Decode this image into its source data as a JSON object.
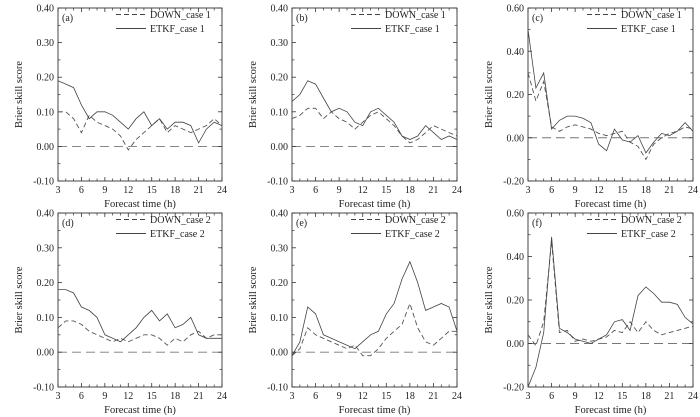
{
  "chart_data": [
    {
      "type": "line",
      "panel_label": "(a)",
      "xlabel": "Forecast time (h)",
      "ylabel": "Brier skill score",
      "xlim": [
        3,
        24
      ],
      "ylim": [
        -0.1,
        0.4
      ],
      "xticks": [
        "3",
        "6",
        "9",
        "12",
        "15",
        "18",
        "21",
        "24"
      ],
      "yticks": [
        "-0.10",
        "0.00",
        "0.10",
        "0.20",
        "0.30",
        "0.40"
      ],
      "legend_position": "top-right",
      "x": [
        3,
        4,
        5,
        6,
        7,
        8,
        9,
        10,
        11,
        12,
        13,
        14,
        15,
        16,
        17,
        18,
        19,
        20,
        21,
        22,
        23,
        24
      ],
      "series": [
        {
          "name": "DOWN_case 1",
          "style": "dashed",
          "values": [
            0.1,
            0.1,
            0.08,
            0.04,
            0.09,
            0.07,
            0.06,
            0.05,
            0.03,
            -0.01,
            0.02,
            0.04,
            0.06,
            0.08,
            0.04,
            0.06,
            0.05,
            0.04,
            0.05,
            0.06,
            0.08,
            0.06
          ]
        },
        {
          "name": "ETKF_case 1",
          "style": "solid",
          "values": [
            0.19,
            0.18,
            0.17,
            0.12,
            0.08,
            0.1,
            0.1,
            0.09,
            0.07,
            0.05,
            0.08,
            0.1,
            0.06,
            0.08,
            0.05,
            0.07,
            0.07,
            0.06,
            0.01,
            0.05,
            0.07,
            0.06
          ]
        }
      ]
    },
    {
      "type": "line",
      "panel_label": "(b)",
      "xlabel": "Forecast time (h)",
      "ylabel": "Brier skill score",
      "xlim": [
        3,
        24
      ],
      "ylim": [
        -0.1,
        0.4
      ],
      "xticks": [
        "3",
        "6",
        "9",
        "12",
        "15",
        "18",
        "21",
        "24"
      ],
      "yticks": [
        "-0.10",
        "0.00",
        "0.10",
        "0.20",
        "0.30",
        "0.40"
      ],
      "legend_position": "top-right",
      "x": [
        3,
        4,
        5,
        6,
        7,
        8,
        9,
        10,
        11,
        12,
        13,
        14,
        15,
        16,
        17,
        18,
        19,
        20,
        21,
        22,
        23,
        24
      ],
      "series": [
        {
          "name": "DOWN_case 1",
          "style": "dashed",
          "values": [
            0.08,
            0.09,
            0.11,
            0.11,
            0.08,
            0.1,
            0.08,
            0.07,
            0.05,
            0.07,
            0.09,
            0.1,
            0.08,
            0.06,
            0.03,
            0.01,
            0.02,
            0.04,
            0.06,
            0.05,
            0.04,
            0.03
          ]
        },
        {
          "name": "ETKF_case 1",
          "style": "solid",
          "values": [
            0.13,
            0.15,
            0.19,
            0.18,
            0.14,
            0.1,
            0.11,
            0.1,
            0.07,
            0.06,
            0.1,
            0.11,
            0.09,
            0.07,
            0.03,
            0.02,
            0.03,
            0.06,
            0.04,
            0.02,
            0.03,
            0.02
          ]
        }
      ]
    },
    {
      "type": "line",
      "panel_label": "(c)",
      "xlabel": "Forecast time (h)",
      "ylabel": "Brier skill score",
      "xlim": [
        3,
        24
      ],
      "ylim": [
        -0.2,
        0.6
      ],
      "xticks": [
        "3",
        "6",
        "9",
        "12",
        "15",
        "18",
        "21",
        "24"
      ],
      "yticks": [
        "-0.20",
        "0.00",
        "0.20",
        "0.40",
        "0.60"
      ],
      "legend_position": "top-right",
      "x": [
        3,
        4,
        5,
        6,
        7,
        8,
        9,
        10,
        11,
        12,
        13,
        14,
        15,
        16,
        17,
        18,
        19,
        20,
        21,
        22,
        23,
        24
      ],
      "series": [
        {
          "name": "DOWN_case 1",
          "style": "dashed",
          "values": [
            0.3,
            0.17,
            0.26,
            0.05,
            0.03,
            0.05,
            0.06,
            0.05,
            0.04,
            0.02,
            0.01,
            0.02,
            0.03,
            -0.02,
            -0.04,
            -0.1,
            -0.03,
            0.0,
            0.02,
            0.03,
            0.05,
            0.04
          ]
        },
        {
          "name": "ETKF_case 1",
          "style": "solid",
          "values": [
            0.5,
            0.23,
            0.3,
            0.04,
            0.08,
            0.1,
            0.1,
            0.09,
            0.07,
            -0.03,
            -0.06,
            0.04,
            -0.01,
            -0.02,
            0.01,
            -0.07,
            -0.02,
            0.02,
            0.01,
            0.03,
            0.07,
            0.03
          ]
        }
      ]
    },
    {
      "type": "line",
      "panel_label": "(d)",
      "xlabel": "Forecast time (h)",
      "ylabel": "Brier skill score",
      "xlim": [
        3,
        24
      ],
      "ylim": [
        -0.1,
        0.4
      ],
      "xticks": [
        "3",
        "6",
        "9",
        "12",
        "15",
        "18",
        "21",
        "24"
      ],
      "yticks": [
        "-0.10",
        "0.00",
        "0.10",
        "0.20",
        "0.30",
        "0.40"
      ],
      "legend_position": "top-right",
      "x": [
        3,
        4,
        5,
        6,
        7,
        8,
        9,
        10,
        11,
        12,
        13,
        14,
        15,
        16,
        17,
        18,
        19,
        20,
        21,
        22,
        23,
        24
      ],
      "series": [
        {
          "name": "DOWN_case 2",
          "style": "dashed",
          "values": [
            0.07,
            0.09,
            0.09,
            0.08,
            0.06,
            0.05,
            0.04,
            0.03,
            0.04,
            0.03,
            0.04,
            0.05,
            0.05,
            0.04,
            0.02,
            0.04,
            0.03,
            0.05,
            0.06,
            0.04,
            0.05,
            0.05
          ]
        },
        {
          "name": "ETKF_case 2",
          "style": "solid",
          "values": [
            0.18,
            0.18,
            0.17,
            0.13,
            0.12,
            0.1,
            0.05,
            0.04,
            0.03,
            0.05,
            0.07,
            0.1,
            0.12,
            0.09,
            0.11,
            0.07,
            0.08,
            0.1,
            0.05,
            0.04,
            0.04,
            0.04
          ]
        }
      ]
    },
    {
      "type": "line",
      "panel_label": "(e)",
      "xlabel": "Forecast time (h)",
      "ylabel": "Brier skill score",
      "xlim": [
        3,
        24
      ],
      "ylim": [
        -0.1,
        0.4
      ],
      "xticks": [
        "3",
        "6",
        "9",
        "12",
        "15",
        "18",
        "21",
        "24"
      ],
      "yticks": [
        "-0.10",
        "0.00",
        "0.10",
        "0.20",
        "0.30",
        "0.40"
      ],
      "legend_position": "top-right",
      "x": [
        3,
        4,
        5,
        6,
        7,
        8,
        9,
        10,
        11,
        12,
        13,
        14,
        15,
        16,
        17,
        18,
        19,
        20,
        21,
        22,
        23,
        24
      ],
      "series": [
        {
          "name": "DOWN_case 2",
          "style": "dashed",
          "values": [
            -0.01,
            0.01,
            0.07,
            0.05,
            0.04,
            0.03,
            0.02,
            0.01,
            0.02,
            -0.01,
            -0.01,
            0.01,
            0.04,
            0.06,
            0.08,
            0.14,
            0.07,
            0.03,
            0.02,
            0.04,
            0.06,
            0.06
          ]
        },
        {
          "name": "ETKF_case 2",
          "style": "solid",
          "values": [
            -0.01,
            0.03,
            0.13,
            0.11,
            0.05,
            0.04,
            0.03,
            0.02,
            0.01,
            0.03,
            0.05,
            0.06,
            0.11,
            0.14,
            0.21,
            0.26,
            0.2,
            0.12,
            0.13,
            0.14,
            0.13,
            0.06
          ]
        }
      ]
    },
    {
      "type": "line",
      "panel_label": "(f)",
      "xlabel": "Forecast time (h)",
      "ylabel": "Brier skill score",
      "xlim": [
        3,
        24
      ],
      "ylim": [
        -0.2,
        0.6
      ],
      "xticks": [
        "3",
        "6",
        "9",
        "12",
        "15",
        "18",
        "21",
        "24"
      ],
      "yticks": [
        "-0.20",
        "0.00",
        "0.20",
        "0.40",
        "0.60"
      ],
      "legend_position": "top-right",
      "x": [
        3,
        4,
        5,
        6,
        7,
        8,
        9,
        10,
        11,
        12,
        13,
        14,
        15,
        16,
        17,
        18,
        19,
        20,
        21,
        22,
        23,
        24
      ],
      "series": [
        {
          "name": "DOWN_case 2",
          "style": "dashed",
          "values": [
            0.04,
            -0.01,
            0.1,
            0.47,
            0.05,
            0.06,
            0.01,
            0.02,
            0.01,
            0.02,
            0.03,
            0.06,
            0.05,
            0.1,
            0.05,
            0.1,
            0.06,
            0.04,
            0.05,
            0.06,
            0.07,
            0.08
          ]
        },
        {
          "name": "ETKF_case 2",
          "style": "solid",
          "values": [
            -0.2,
            -0.11,
            0.05,
            0.49,
            0.07,
            0.05,
            0.02,
            0.01,
            0.0,
            0.02,
            0.04,
            0.1,
            0.11,
            0.06,
            0.22,
            0.26,
            0.23,
            0.19,
            0.19,
            0.18,
            0.12,
            0.09
          ]
        }
      ]
    }
  ]
}
